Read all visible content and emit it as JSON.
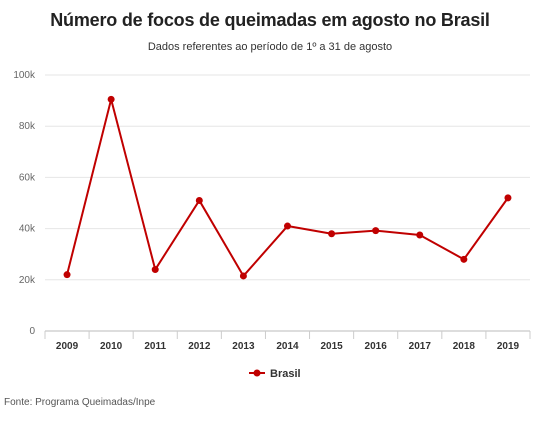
{
  "chart_data": {
    "type": "line",
    "title": "Número de focos de queimadas em agosto no Brasil",
    "subtitle": "Dados referentes ao período de 1º a 31 de agosto",
    "categories": [
      "2009",
      "2010",
      "2011",
      "2012",
      "2013",
      "2014",
      "2015",
      "2016",
      "2017",
      "2018",
      "2019"
    ],
    "series": [
      {
        "name": "Brasil",
        "color": "#c00000",
        "values": [
          22000,
          90500,
          24000,
          51000,
          21500,
          41000,
          38000,
          39200,
          37500,
          28000,
          52000
        ]
      }
    ],
    "yticks": [
      {
        "value": 0,
        "label": "0"
      },
      {
        "value": 20000,
        "label": "20k"
      },
      {
        "value": 40000,
        "label": "40k"
      },
      {
        "value": 60000,
        "label": "60k"
      },
      {
        "value": 80000,
        "label": "80k"
      },
      {
        "value": 100000,
        "label": "100k"
      }
    ],
    "ylim": [
      0,
      100000
    ],
    "grid": true,
    "legend": "bottom-center",
    "source": "Fonte: Programa Queimadas/Inpe"
  }
}
